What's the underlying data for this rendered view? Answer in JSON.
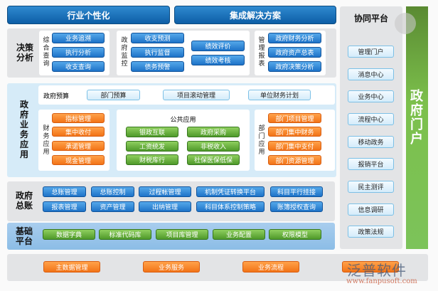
{
  "top": {
    "left": "行业个性化",
    "right": "集成解决方案"
  },
  "decision": {
    "title": "决策分析",
    "group1": {
      "label": "综合查询",
      "items": [
        "业务追溯",
        "执行分析",
        "收支查询"
      ]
    },
    "group2": {
      "label": "政府监控",
      "items": [
        "收支预测",
        "执行监督",
        "债务预警"
      ],
      "items2": [
        "绩效评价",
        "绩效考核"
      ]
    },
    "group3": {
      "label": "管理报表",
      "items": [
        "政府财务分析",
        "政府资产总表",
        "政府决策分析"
      ]
    }
  },
  "gov_business": {
    "title": "政府业务应用",
    "budget": {
      "label": "政府预算",
      "items": [
        "部门预算",
        "项目滚动管理",
        "单位财务计划"
      ]
    },
    "finance": {
      "label": "财务应用",
      "items": [
        "指标管理",
        "集中收付",
        "承诺管理",
        "现金管理"
      ]
    },
    "public": {
      "label": "公共应用",
      "items": [
        "银政互联",
        "政府采购",
        "工资统发",
        "非税收入",
        "财税库行",
        "社保医保低保"
      ]
    },
    "dept": {
      "label": "部门应用",
      "items": [
        "部门项目管理",
        "部门集中财务",
        "部门集中支付",
        "部门资源管理"
      ]
    }
  },
  "ledger": {
    "title": "政府总账",
    "items": [
      "总账管理",
      "总账控制",
      "过程帐管理",
      "机制凭证转换平台",
      "科目平行挂接",
      "报表管理",
      "资产管理",
      "出纳管理",
      "科目体系控制策略",
      "账簿授权查询"
    ]
  },
  "base": {
    "title": "基础平台",
    "items": [
      "数据字典",
      "标准代码库",
      "项目库管理",
      "业务配置",
      "权限模型"
    ]
  },
  "bottom": {
    "items": [
      "主数据管理",
      "业务服务",
      "业务流程",
      ""
    ]
  },
  "collab": {
    "title": "协同平台",
    "items": [
      "管理门户",
      "消息中心",
      "业务中心",
      "流程中心",
      "移动政务",
      "报销平台",
      "民主测评",
      "信息调研",
      "政策法规"
    ]
  },
  "portal": {
    "title": "政府门户"
  },
  "watermark": {
    "brand": "泛普软件",
    "url": "www.fanpusoft.com"
  }
}
